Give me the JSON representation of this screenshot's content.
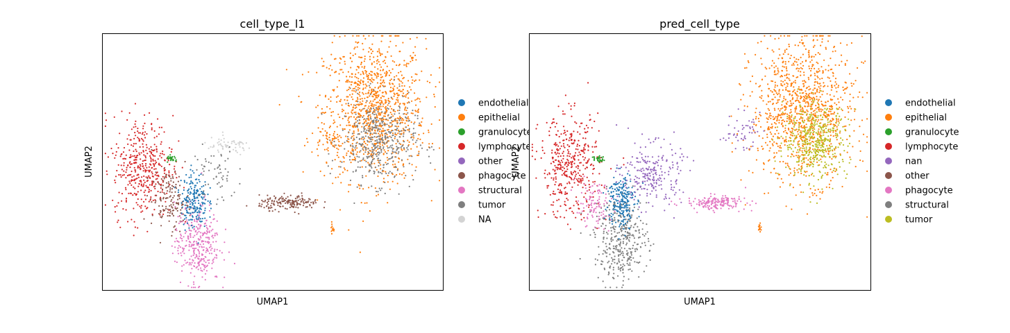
{
  "chart_data": [
    {
      "type": "scatter",
      "title": "cell_type_l1",
      "xlabel": "UMAP1",
      "ylabel": "UMAP2",
      "grid": false,
      "legend_placement": "right",
      "series": [
        {
          "name": "endothelial",
          "color": "#1f77b4"
        },
        {
          "name": "epithelial",
          "color": "#ff7f0e"
        },
        {
          "name": "granulocyte",
          "color": "#2ca02c"
        },
        {
          "name": "lymphocyte",
          "color": "#d62728"
        },
        {
          "name": "other",
          "color": "#9467bd"
        },
        {
          "name": "phagocyte",
          "color": "#8c564b"
        },
        {
          "name": "structural",
          "color": "#e377c2"
        },
        {
          "name": "tumor",
          "color": "#7f7f7f"
        },
        {
          "name": "NA",
          "color": "#d3d3d3"
        }
      ],
      "clusters": [
        {
          "series": "epithelial",
          "cx": 0.8,
          "cy": 0.7,
          "rx": 0.135,
          "ry": 0.25,
          "n": 1100
        },
        {
          "series": "tumor",
          "cx": 0.81,
          "cy": 0.58,
          "rx": 0.1,
          "ry": 0.15,
          "n": 450
        },
        {
          "series": "lymphocyte",
          "cx": 0.12,
          "cy": 0.48,
          "rx": 0.08,
          "ry": 0.18,
          "n": 420
        },
        {
          "series": "phagocyte",
          "cx": 0.2,
          "cy": 0.35,
          "rx": 0.05,
          "ry": 0.1,
          "n": 160
        },
        {
          "series": "structural",
          "cx": 0.28,
          "cy": 0.18,
          "rx": 0.06,
          "ry": 0.14,
          "n": 330
        },
        {
          "series": "endothelial",
          "cx": 0.27,
          "cy": 0.35,
          "rx": 0.035,
          "ry": 0.1,
          "n": 200
        },
        {
          "series": "phagocyte",
          "cx": 0.55,
          "cy": 0.34,
          "rx": 0.08,
          "ry": 0.025,
          "n": 170
        },
        {
          "series": "granulocyte",
          "cx": 0.205,
          "cy": 0.51,
          "rx": 0.014,
          "ry": 0.012,
          "n": 28
        },
        {
          "series": "NA",
          "cx": 0.37,
          "cy": 0.56,
          "rx": 0.07,
          "ry": 0.03,
          "n": 60
        },
        {
          "series": "tumor",
          "cx": 0.33,
          "cy": 0.45,
          "rx": 0.06,
          "ry": 0.1,
          "n": 60
        },
        {
          "series": "epithelial",
          "cx": 0.67,
          "cy": 0.6,
          "rx": 0.05,
          "ry": 0.06,
          "n": 50
        },
        {
          "series": "epithelial",
          "cx": 0.675,
          "cy": 0.24,
          "rx": 0.004,
          "ry": 0.018,
          "n": 14
        }
      ]
    },
    {
      "type": "scatter",
      "title": "pred_cell_type",
      "xlabel": "UMAP1",
      "ylabel": "UMAP2",
      "grid": false,
      "legend_placement": "right",
      "series": [
        {
          "name": "endothelial",
          "color": "#1f77b4"
        },
        {
          "name": "epithelial",
          "color": "#ff7f0e"
        },
        {
          "name": "granulocyte",
          "color": "#2ca02c"
        },
        {
          "name": "lymphocyte",
          "color": "#d62728"
        },
        {
          "name": "nan",
          "color": "#9467bd"
        },
        {
          "name": "other",
          "color": "#8c564b"
        },
        {
          "name": "phagocyte",
          "color": "#e377c2"
        },
        {
          "name": "structural",
          "color": "#7f7f7f"
        },
        {
          "name": "tumor",
          "color": "#bcbd22"
        }
      ],
      "clusters": [
        {
          "series": "epithelial",
          "cx": 0.8,
          "cy": 0.7,
          "rx": 0.135,
          "ry": 0.25,
          "n": 1100
        },
        {
          "series": "tumor",
          "cx": 0.84,
          "cy": 0.58,
          "rx": 0.085,
          "ry": 0.13,
          "n": 450
        },
        {
          "series": "lymphocyte",
          "cx": 0.12,
          "cy": 0.48,
          "rx": 0.08,
          "ry": 0.18,
          "n": 420
        },
        {
          "series": "structural",
          "cx": 0.27,
          "cy": 0.2,
          "rx": 0.07,
          "ry": 0.15,
          "n": 380
        },
        {
          "series": "endothelial",
          "cx": 0.27,
          "cy": 0.35,
          "rx": 0.035,
          "ry": 0.1,
          "n": 220
        },
        {
          "series": "nan",
          "cx": 0.36,
          "cy": 0.45,
          "rx": 0.08,
          "ry": 0.11,
          "n": 240
        },
        {
          "series": "phagocyte",
          "cx": 0.55,
          "cy": 0.34,
          "rx": 0.08,
          "ry": 0.025,
          "n": 170
        },
        {
          "series": "phagocyte",
          "cx": 0.19,
          "cy": 0.33,
          "rx": 0.05,
          "ry": 0.08,
          "n": 100
        },
        {
          "series": "granulocyte",
          "cx": 0.205,
          "cy": 0.51,
          "rx": 0.014,
          "ry": 0.012,
          "n": 28
        },
        {
          "series": "nan",
          "cx": 0.62,
          "cy": 0.62,
          "rx": 0.05,
          "ry": 0.06,
          "n": 50
        },
        {
          "series": "epithelial",
          "cx": 0.675,
          "cy": 0.24,
          "rx": 0.004,
          "ry": 0.018,
          "n": 14
        }
      ]
    }
  ]
}
